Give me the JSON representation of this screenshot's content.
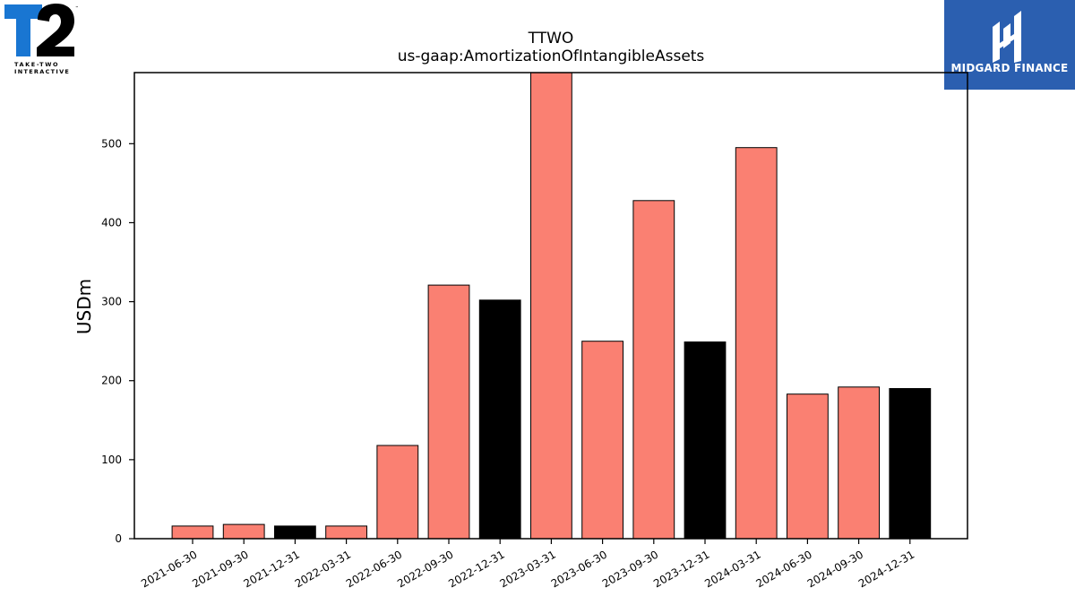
{
  "logos": {
    "left": {
      "icon": "take-two-t2-logo",
      "text": "T2",
      "subtext_line1": "TAKE-TWO",
      "subtext_line2": "INTERACTIVE",
      "colors": {
        "t": "#1976d2",
        "two": "#000000"
      }
    },
    "right": {
      "icon": "midgard-finance-logo",
      "name": "MIDGARD FINANCE",
      "background": "#2b5fb0"
    }
  },
  "chart_data": {
    "type": "bar",
    "title": "TTWO",
    "subtitle": "us-gaap:AmortizationOfIntangibleAssets",
    "xlabel": "",
    "ylabel": "USDm",
    "categories": [
      "2021-06-30",
      "2021-09-30",
      "2021-12-31",
      "2022-03-31",
      "2022-06-30",
      "2022-09-30",
      "2022-12-31",
      "2023-03-31",
      "2023-06-30",
      "2023-09-30",
      "2023-12-31",
      "2024-03-31",
      "2024-06-30",
      "2024-09-30",
      "2024-12-31"
    ],
    "values": [
      16,
      18,
      16,
      16,
      118,
      321,
      302,
      599,
      250,
      428,
      249,
      495,
      183,
      192,
      190
    ],
    "bar_colors": [
      "#fa8072",
      "#fa8072",
      "#000000",
      "#fa8072",
      "#fa8072",
      "#fa8072",
      "#000000",
      "#fa8072",
      "#fa8072",
      "#fa8072",
      "#000000",
      "#fa8072",
      "#fa8072",
      "#fa8072",
      "#000000"
    ],
    "yticks": [
      0,
      100,
      200,
      300,
      400,
      500
    ],
    "ylim": [
      0,
      590
    ],
    "grid": false,
    "legend": "none"
  }
}
